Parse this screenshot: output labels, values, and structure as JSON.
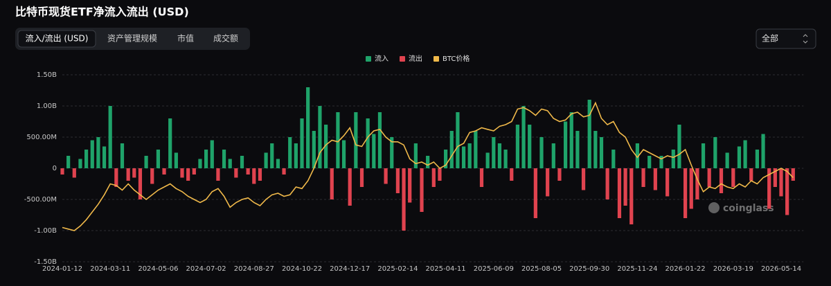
{
  "chart_data": {
    "type": "bar",
    "title": "比特币现货ETF净流入流出 (USD)",
    "tabs": [
      "流入/流出 (USD)",
      "资产管理规模",
      "市值",
      "成交额"
    ],
    "selector": "全部",
    "watermark": "coinglass",
    "categories": [
      "2024-01-12",
      null,
      null,
      null,
      null,
      null,
      null,
      null,
      "2024-03-11",
      null,
      null,
      null,
      null,
      null,
      null,
      null,
      "2024-05-06",
      null,
      null,
      null,
      null,
      null,
      null,
      null,
      "2024-07-02",
      null,
      null,
      null,
      null,
      null,
      null,
      null,
      "2024-08-27",
      null,
      null,
      null,
      null,
      null,
      null,
      null,
      "2024-10-22",
      null,
      null,
      null,
      null,
      null,
      null,
      null,
      "2024-12-17",
      null,
      null,
      null,
      null,
      null,
      null,
      null,
      "2025-02-14",
      null,
      null,
      null,
      null,
      null,
      null,
      null,
      "2025-04-11",
      null,
      null,
      null,
      null,
      null,
      null,
      null,
      "2025-06-09",
      null,
      null,
      null,
      null,
      null,
      null,
      null,
      "2025-08-05",
      null,
      null,
      null,
      null,
      null,
      null,
      null,
      "2025-09-30",
      null,
      null,
      null,
      null,
      null,
      null,
      null,
      "2025-11-24",
      null,
      null,
      null,
      null,
      null,
      null,
      null,
      "2026-01-22",
      null,
      null,
      null,
      null,
      null,
      null,
      null,
      "2026-03-19",
      null,
      null,
      null,
      null,
      null,
      null,
      null,
      "2026-05-14",
      null,
      null
    ],
    "series": [
      {
        "name": "流入",
        "color": "#1fa36a",
        "values": [
          null,
          200,
          null,
          150,
          300,
          450,
          500,
          350,
          1000,
          null,
          400,
          null,
          null,
          null,
          200,
          null,
          300,
          null,
          800,
          250,
          null,
          null,
          null,
          150,
          300,
          450,
          null,
          300,
          150,
          null,
          200,
          null,
          null,
          null,
          250,
          400,
          150,
          null,
          500,
          400,
          800,
          1300,
          600,
          1000,
          700,
          null,
          900,
          450,
          null,
          900,
          null,
          800,
          550,
          900,
          null,
          500,
          null,
          null,
          null,
          400,
          null,
          200,
          null,
          null,
          300,
          600,
          900,
          350,
          400,
          600,
          null,
          250,
          500,
          400,
          300,
          null,
          700,
          1000,
          700,
          null,
          500,
          null,
          400,
          null,
          750,
          900,
          600,
          null,
          1100,
          600,
          500,
          null,
          300,
          null,
          null,
          null,
          400,
          null,
          200,
          null,
          200,
          null,
          300,
          700,
          null,
          null,
          null,
          400,
          null,
          500,
          null,
          250,
          null,
          350,
          450,
          null,
          300,
          550,
          null,
          null,
          null,
          null,
          null
        ]
      },
      {
        "name": "流出",
        "color": "#e0434f",
        "values": [
          -100,
          null,
          -150,
          null,
          null,
          null,
          null,
          null,
          null,
          -300,
          null,
          -200,
          -150,
          -500,
          null,
          -250,
          null,
          -100,
          null,
          null,
          -150,
          -200,
          -100,
          null,
          null,
          null,
          -200,
          null,
          null,
          -150,
          null,
          -100,
          -250,
          -200,
          null,
          null,
          null,
          -100,
          null,
          null,
          null,
          null,
          null,
          null,
          null,
          -500,
          null,
          null,
          -600,
          null,
          -300,
          null,
          null,
          null,
          -250,
          null,
          -400,
          -1000,
          -550,
          null,
          -700,
          null,
          -300,
          -200,
          null,
          null,
          null,
          null,
          null,
          null,
          -300,
          null,
          null,
          null,
          null,
          -200,
          null,
          null,
          null,
          -800,
          null,
          -450,
          null,
          -200,
          null,
          null,
          null,
          -350,
          null,
          null,
          null,
          -500,
          null,
          -800,
          -600,
          -900,
          null,
          -300,
          null,
          -350,
          null,
          -450,
          null,
          null,
          -800,
          -650,
          -500,
          null,
          -300,
          null,
          -400,
          null,
          -300,
          null,
          null,
          -200,
          null,
          null,
          -650,
          -300,
          -450,
          -750,
          -200
        ]
      },
      {
        "name": "BTC价格",
        "type": "line",
        "axis": "y2",
        "color": "#f0b94a",
        "values": [
          42000,
          41000,
          40000,
          43000,
          47000,
          52000,
          57000,
          63000,
          70000,
          69000,
          66000,
          70000,
          66000,
          63000,
          60000,
          63000,
          66000,
          68000,
          70000,
          67000,
          65000,
          62000,
          60000,
          58000,
          60000,
          65000,
          67000,
          62000,
          55000,
          58000,
          60000,
          61000,
          58000,
          56000,
          60000,
          63000,
          64000,
          62000,
          63000,
          68000,
          67000,
          72000,
          80000,
          90000,
          95000,
          98000,
          97000,
          101000,
          106000,
          95000,
          94000,
          100000,
          104000,
          105000,
          100000,
          97000,
          97000,
          95000,
          86000,
          83000,
          84000,
          82000,
          84000,
          80000,
          82000,
          88000,
          94000,
          96000,
          103000,
          104000,
          106000,
          105000,
          104000,
          107000,
          108000,
          110000,
          118000,
          119000,
          117000,
          114000,
          118000,
          117000,
          112000,
          110000,
          111000,
          115000,
          116000,
          113000,
          114000,
          122000,
          112000,
          108000,
          110000,
          103000,
          100000,
          92000,
          87000,
          92000,
          90000,
          88000,
          86000,
          88000,
          87000,
          89000,
          92000,
          82000,
          73000,
          65000,
          68000,
          67000,
          70000,
          68000,
          67000,
          70000,
          68000,
          72000,
          70000,
          74000,
          76000,
          78000,
          80000,
          78000,
          74000
        ]
      }
    ],
    "ylim": [
      -1500,
      1500
    ],
    "yticks": [
      {
        "value": -1500,
        "label": "-1.50B"
      },
      {
        "value": -1000,
        "label": "-1.00B"
      },
      {
        "value": -500,
        "label": "-500.00M"
      },
      0,
      {
        "value": 500,
        "label": "500.00M"
      },
      {
        "value": 1000,
        "label": "1.00B"
      },
      {
        "value": 1500,
        "label": "1.50B"
      }
    ],
    "y2lim": [
      20000,
      140000
    ],
    "grid": true
  }
}
